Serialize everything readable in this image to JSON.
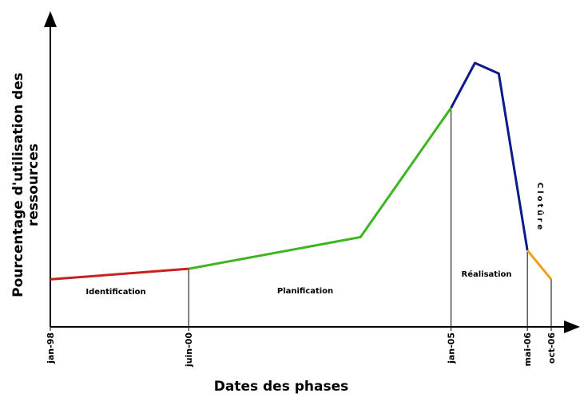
{
  "chart_data": {
    "type": "line",
    "y_label": "Pourcentage d'utilisation des ressources",
    "x_label": "Dates des phases",
    "xlim": [
      "1998-01",
      "2006-10"
    ],
    "xticks": [
      {
        "value": "1998-01",
        "label": "jan-98"
      },
      {
        "value": "2000-06",
        "label": "juin-00"
      },
      {
        "value": "2005-01",
        "label": "jan-05"
      },
      {
        "value": "2006-05",
        "label": "mai-06"
      },
      {
        "value": "2006-10",
        "label": "oct-06"
      }
    ],
    "series": [
      {
        "name": "Identification",
        "color": "#cc1f1f",
        "x": [
          "1998-01",
          "2000-06"
        ],
        "values": [
          18,
          22
        ]
      },
      {
        "name": "Planification",
        "color": "#3cb521",
        "x": [
          "2000-06",
          "2003-06",
          "2005-01"
        ],
        "values": [
          22,
          34,
          83
        ]
      },
      {
        "name": "Réalisation",
        "color": "#0f1a8a",
        "x": [
          "2005-01",
          "2005-06",
          "2005-11",
          "2006-05"
        ],
        "values": [
          83,
          100,
          96,
          29
        ]
      },
      {
        "name": "Clotûre",
        "color": "#f0a020",
        "x": [
          "2006-05",
          "2006-10"
        ],
        "values": [
          29,
          18
        ]
      }
    ]
  }
}
